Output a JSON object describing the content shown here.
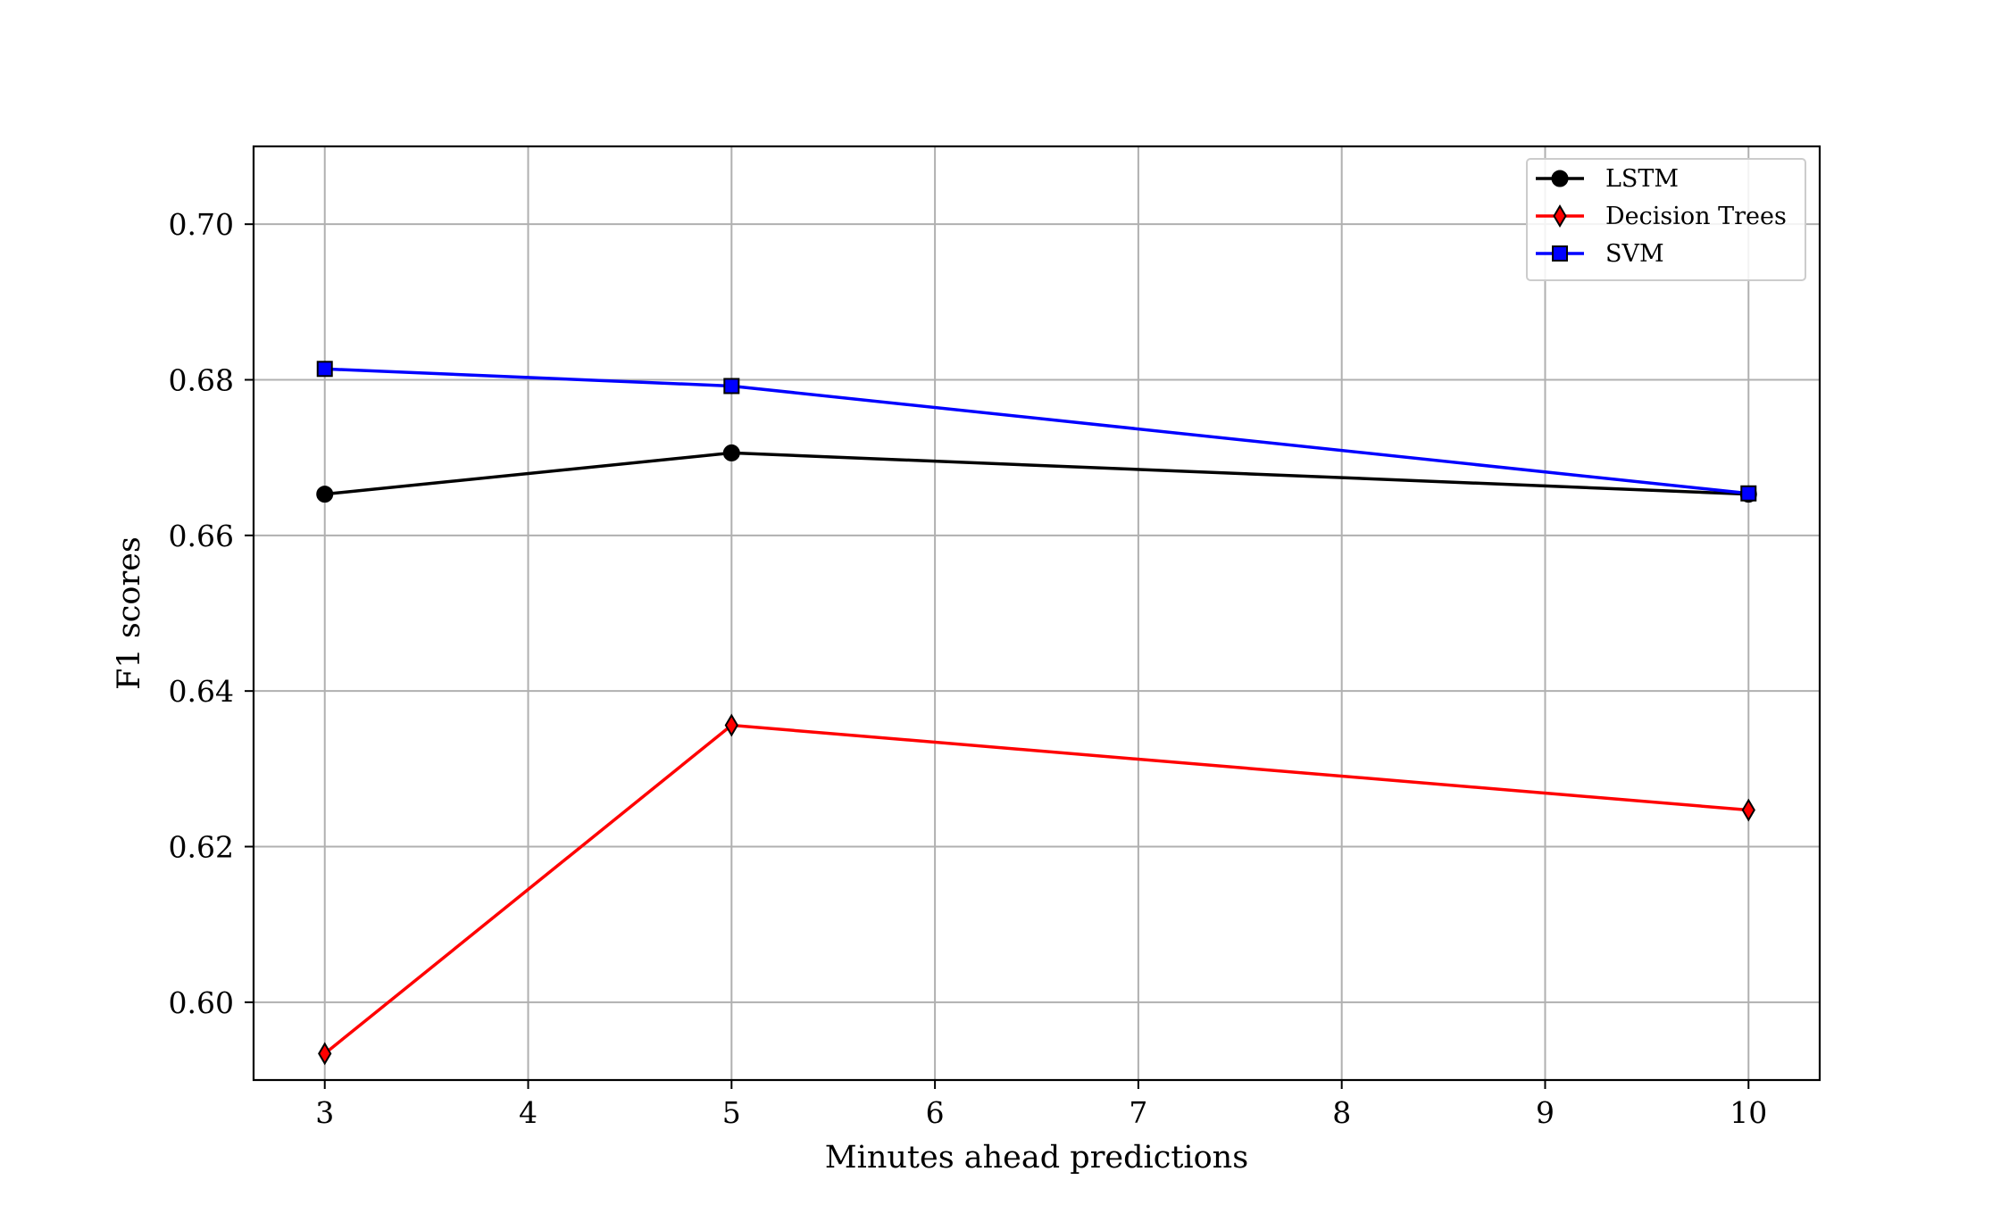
{
  "chart_data": {
    "type": "line",
    "xlabel": "Minutes ahead predictions",
    "ylabel": "F1 scores",
    "xlim": [
      2.65,
      10.35
    ],
    "ylim": [
      0.59,
      0.71
    ],
    "xticks": [
      3,
      4,
      5,
      6,
      7,
      8,
      9,
      10
    ],
    "yticks": [
      0.6,
      0.62,
      0.64,
      0.66,
      0.68,
      0.7
    ],
    "xtick_labels": [
      "3",
      "4",
      "5",
      "6",
      "7",
      "8",
      "9",
      "10"
    ],
    "ytick_labels": [
      "0.60",
      "0.62",
      "0.64",
      "0.66",
      "0.68",
      "0.70"
    ],
    "grid": true,
    "legend_position": "top-right",
    "x": [
      3,
      5,
      10
    ],
    "series": [
      {
        "name": "LSTM",
        "values": [
          0.6653,
          0.6706,
          0.6653
        ],
        "color": "#000000",
        "marker": "circle"
      },
      {
        "name": "Decision Trees",
        "values": [
          0.5934,
          0.6356,
          0.6247
        ],
        "color": "#ff0000",
        "marker": "diamond"
      },
      {
        "name": "SVM",
        "values": [
          0.6814,
          0.6792,
          0.6654
        ],
        "color": "#0000ff",
        "marker": "square"
      }
    ]
  }
}
